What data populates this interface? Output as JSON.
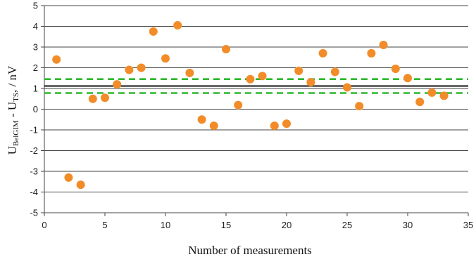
{
  "chart_data": {
    "type": "scatter",
    "title": "",
    "xlabel": "Number of measurements",
    "ylabel": {
      "main1": "U",
      "sub1": "BelGIM",
      "main2": " - U",
      "sub2": "TS",
      "unit": ", / nV"
    },
    "xlim": [
      0,
      35
    ],
    "ylim": [
      -5,
      5
    ],
    "xticks": [
      "0",
      "5",
      "10",
      "15",
      "20",
      "25",
      "30",
      "35"
    ],
    "yticks": [
      "5",
      "4",
      "3",
      "2",
      "1",
      "0",
      "-1",
      "-2",
      "-3",
      "-4",
      "-5"
    ],
    "grid": "horizontal",
    "series": [
      {
        "x": [
          1,
          2,
          3,
          4,
          5,
          6,
          7,
          8,
          9,
          10,
          11,
          12,
          13,
          14,
          15,
          16,
          17,
          18,
          19,
          20,
          21,
          22,
          23,
          24,
          25,
          26,
          27,
          28,
          29,
          30,
          31,
          32,
          33
        ],
        "y": [
          2.4,
          -3.3,
          -3.65,
          0.5,
          0.55,
          1.2,
          1.9,
          2.0,
          3.75,
          2.45,
          4.05,
          1.75,
          -0.5,
          -0.8,
          2.9,
          0.2,
          1.45,
          1.6,
          -0.8,
          -0.7,
          1.85,
          1.3,
          2.7,
          1.8,
          1.05,
          0.15,
          2.7,
          3.1,
          1.95,
          1.5,
          0.35,
          0.8,
          0.65
        ],
        "color": "#F28C28"
      }
    ],
    "reference_lines": [
      {
        "y": 1.12,
        "style": "solid",
        "color": "#111111"
      },
      {
        "y": 1.45,
        "style": "dashed",
        "color": "#2DB82D"
      },
      {
        "y": 0.78,
        "style": "dashed",
        "color": "#2DB82D"
      }
    ]
  }
}
